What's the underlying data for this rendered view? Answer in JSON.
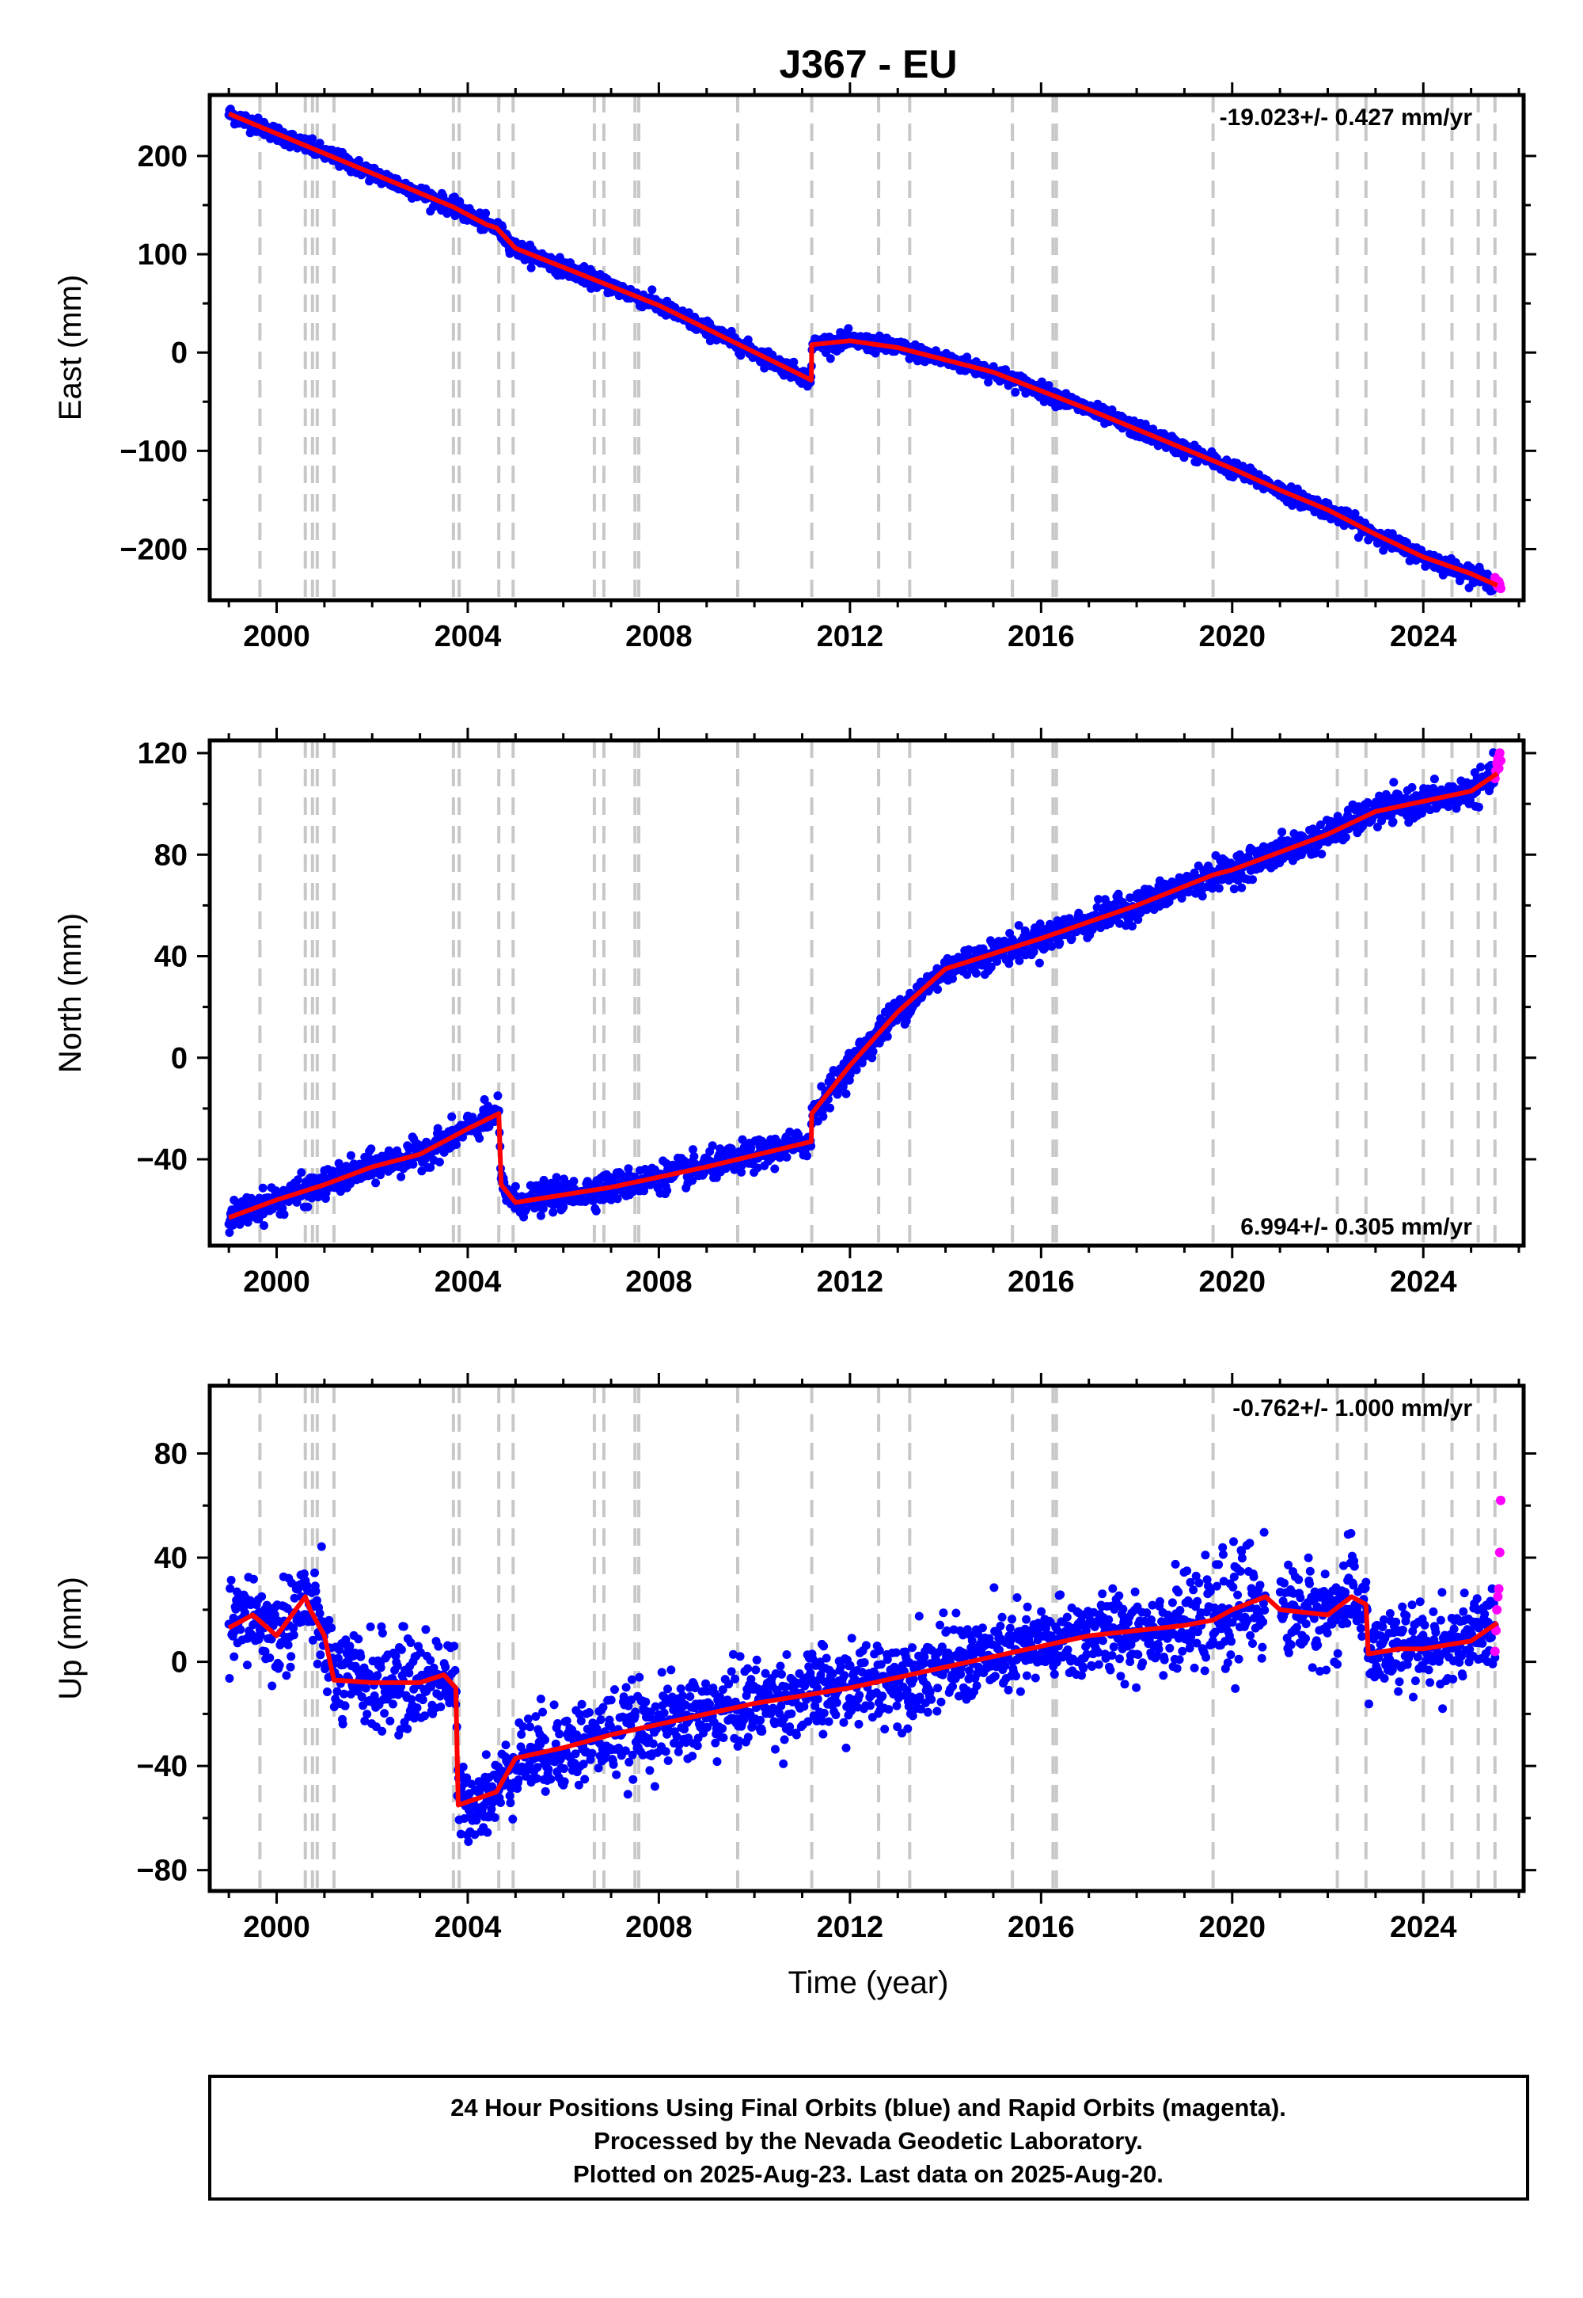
{
  "title": "J367 - EU",
  "footer": {
    "lines": [
      "24 Hour Positions Using Final Orbits (blue) and Rapid Orbits (magenta).",
      "Processed by the Nevada Geodetic Laboratory.",
      "Plotted on 2025-Aug-23. Last data on 2025-Aug-20."
    ]
  },
  "xlabel": "Time (year)",
  "colors": {
    "final_orbit_points": "#0000ff",
    "rapid_orbit_points": "#ff00ff",
    "model_line": "#ff0000",
    "event_lines": "#c8c8c8"
  },
  "chart_data": [
    {
      "type": "scatter",
      "panel": "east",
      "ylabel": "East (mm)",
      "rate_label": "-19.023+/- 0.427 mm/yr",
      "rate_position": "top-right",
      "xlim": [
        1998.6,
        2026.1
      ],
      "ylim": [
        -252,
        262
      ],
      "x_ticks": [
        2000,
        2004,
        2008,
        2012,
        2016,
        2020,
        2024
      ],
      "x_tick_labels": [
        "2000",
        "2004",
        "2008",
        "2012",
        "2016",
        "2020",
        "2024"
      ],
      "y_ticks": [
        -200,
        -100,
        0,
        100,
        200
      ],
      "y_tick_labels": [
        "−200",
        "−100",
        "0",
        "100",
        "200"
      ],
      "grid": false,
      "equipment_change_epochs": [
        1999.65,
        2000.6,
        2000.75,
        2000.85,
        2001.2,
        2003.7,
        2003.82,
        2004.65,
        2004.95,
        2006.65,
        2006.85,
        2007.5,
        2007.58,
        2009.65,
        2011.2,
        2012.6,
        2013.25,
        2015.4,
        2016.25,
        2016.32,
        2019.6,
        2022.2,
        2022.8,
        2024.0,
        2024.6,
        2025.15,
        2025.5
      ],
      "trend_model": {
        "name": "model",
        "x": [
          1999.0,
          2003.7,
          2004.4,
          2004.6,
          2005.0,
          2008.0,
          2011.19,
          2011.2,
          2012.0,
          2013.0,
          2015.0,
          2017.0,
          2020.0,
          2021.0,
          2022.0,
          2023.0,
          2024.0,
          2025.0,
          2025.55
        ],
        "y": [
          243,
          148,
          130,
          127,
          106,
          48,
          -28,
          8,
          12,
          5,
          -20,
          -58,
          -118,
          -140,
          -160,
          -185,
          -208,
          -225,
          -237
        ]
      },
      "rapid_orbit_points": {
        "x": [
          2025.5,
          2025.52,
          2025.54,
          2025.56,
          2025.58,
          2025.6,
          2025.62
        ],
        "y": [
          -229,
          -232,
          -236,
          -238,
          -233,
          -236,
          -240
        ]
      }
    },
    {
      "type": "scatter",
      "panel": "north",
      "ylabel": "North (mm)",
      "rate_label": "6.994+/- 0.305 mm/yr",
      "rate_position": "bottom-right",
      "xlim": [
        1998.6,
        2026.1
      ],
      "ylim": [
        -74,
        125
      ],
      "x_ticks": [
        2000,
        2004,
        2008,
        2012,
        2016,
        2020,
        2024
      ],
      "x_tick_labels": [
        "2000",
        "2004",
        "2008",
        "2012",
        "2016",
        "2020",
        "2024"
      ],
      "y_ticks": [
        -40,
        0,
        40,
        80,
        120
      ],
      "y_tick_labels": [
        "−40",
        "0",
        "40",
        "80",
        "120"
      ],
      "grid": false,
      "equipment_change_epochs": [
        1999.65,
        2000.6,
        2000.75,
        2000.85,
        2001.2,
        2003.7,
        2003.82,
        2004.65,
        2004.95,
        2006.65,
        2006.85,
        2007.5,
        2007.58,
        2009.65,
        2011.2,
        2012.6,
        2013.25,
        2015.4,
        2016.25,
        2016.32,
        2019.6,
        2022.2,
        2022.8,
        2024.0,
        2024.6,
        2025.15,
        2025.5
      ],
      "trend_model": {
        "name": "model",
        "x": [
          1999.0,
          2000.0,
          2001.0,
          2002.0,
          2003.0,
          2004.0,
          2004.65,
          2004.7,
          2005.0,
          2007.0,
          2009.0,
          2011.19,
          2011.2,
          2012.0,
          2013.0,
          2014.0,
          2016.0,
          2018.0,
          2019.6,
          2020.0,
          2021.0,
          2022.0,
          2023.0,
          2024.0,
          2025.0,
          2025.55
        ],
        "y": [
          -63,
          -56,
          -50,
          -43,
          -38,
          -28,
          -22,
          -50,
          -57,
          -51,
          -43,
          -33,
          -22,
          -3,
          18,
          35,
          47,
          60,
          72,
          74,
          81,
          88,
          97,
          101,
          105,
          112
        ]
      },
      "rapid_orbit_points": {
        "x": [
          2025.5,
          2025.52,
          2025.54,
          2025.56,
          2025.58,
          2025.6,
          2025.62
        ],
        "y": [
          110,
          113,
          116,
          118,
          114,
          120,
          117
        ]
      }
    },
    {
      "type": "scatter",
      "panel": "up",
      "ylabel": "Up (mm)",
      "rate_label": "-0.762+/- 1.000 mm/yr",
      "rate_position": "top-right",
      "xlim": [
        1998.6,
        2026.1
      ],
      "ylim": [
        -88,
        106
      ],
      "x_ticks": [
        2000,
        2004,
        2008,
        2012,
        2016,
        2020,
        2024
      ],
      "x_tick_labels": [
        "2000",
        "2004",
        "2008",
        "2012",
        "2016",
        "2020",
        "2024"
      ],
      "y_ticks": [
        -80,
        -40,
        0,
        40,
        80
      ],
      "y_tick_labels": [
        "−80",
        "−40",
        "0",
        "40",
        "80"
      ],
      "grid": false,
      "equipment_change_epochs": [
        1999.65,
        2000.6,
        2000.75,
        2000.85,
        2001.2,
        2003.7,
        2003.82,
        2004.65,
        2004.95,
        2006.65,
        2006.85,
        2007.5,
        2007.58,
        2009.65,
        2011.2,
        2012.6,
        2013.25,
        2015.4,
        2016.25,
        2016.32,
        2019.6,
        2022.2,
        2022.8,
        2024.0,
        2024.6,
        2025.15,
        2025.5
      ],
      "trend_model": {
        "name": "model",
        "x": [
          1999.0,
          1999.5,
          2000.0,
          2000.6,
          2000.7,
          2001.0,
          2001.2,
          2002.0,
          2003.0,
          2003.5,
          2003.75,
          2003.8,
          2004.6,
          2005.0,
          2006.0,
          2007.0,
          2008.0,
          2009.0,
          2010.0,
          2011.0,
          2012.0,
          2013.0,
          2014.0,
          2015.0,
          2016.0,
          2017.0,
          2018.0,
          2019.0,
          2019.6,
          2020.0,
          2020.7,
          2021.0,
          2022.0,
          2022.5,
          2022.8,
          2022.85,
          2023.5,
          2024.0,
          2025.0,
          2025.55
        ],
        "y": [
          13,
          18,
          10,
          25,
          20,
          10,
          -7,
          -8,
          -8,
          -5,
          -10,
          -55,
          -50,
          -37,
          -33,
          -28,
          -24,
          -20,
          -16,
          -13,
          -10,
          -6,
          -2,
          2,
          6,
          10,
          12,
          14,
          16,
          20,
          25,
          20,
          18,
          25,
          22,
          3,
          5,
          5,
          8,
          15
        ]
      },
      "rapid_orbit_points": {
        "x": [
          2025.5,
          2025.52,
          2025.54,
          2025.56,
          2025.58,
          2025.6,
          2025.62
        ],
        "y": [
          4,
          12,
          20,
          25,
          28,
          42,
          62
        ]
      }
    }
  ]
}
